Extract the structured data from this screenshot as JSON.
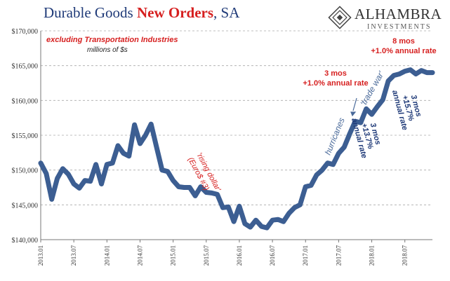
{
  "chart_data": {
    "type": "line",
    "title": {
      "part1": "Durable Goods ",
      "part2": "New Orders",
      "part3": ", SA"
    },
    "subtitle": "excluding Transportation  Industries",
    "units": "millions of $s",
    "ylim": [
      140000,
      170000
    ],
    "yticks": [
      140000,
      145000,
      150000,
      155000,
      160000,
      165000,
      170000
    ],
    "ytick_labels": [
      "$140,000",
      "$145,000",
      "$150,000",
      "$155,000",
      "$160,000",
      "$165,000",
      "$170,000"
    ],
    "xtick_labels": [
      "2013.01",
      "2013.07",
      "2014.01",
      "2014.07",
      "2015.01",
      "2015.07",
      "2016.01",
      "2016.07",
      "2017.01",
      "2017.07",
      "2018.01",
      "2018.07"
    ],
    "grid": true,
    "series_color": "#3c5e92",
    "x": [
      "2013.01",
      "2013.02",
      "2013.03",
      "2013.04",
      "2013.05",
      "2013.06",
      "2013.07",
      "2013.08",
      "2013.09",
      "2013.10",
      "2013.11",
      "2013.12",
      "2014.01",
      "2014.02",
      "2014.03",
      "2014.04",
      "2014.05",
      "2014.06",
      "2014.07",
      "2014.08",
      "2014.09",
      "2014.10",
      "2014.11",
      "2014.12",
      "2015.01",
      "2015.02",
      "2015.03",
      "2015.04",
      "2015.05",
      "2015.06",
      "2015.07",
      "2015.08",
      "2015.09",
      "2015.10",
      "2015.11",
      "2015.12",
      "2016.01",
      "2016.02",
      "2016.03",
      "2016.04",
      "2016.05",
      "2016.06",
      "2016.07",
      "2016.08",
      "2016.09",
      "2016.10",
      "2016.11",
      "2016.12",
      "2017.01",
      "2017.02",
      "2017.03",
      "2017.04",
      "2017.05",
      "2017.06",
      "2017.07",
      "2017.08",
      "2017.09",
      "2017.10",
      "2017.11",
      "2017.12",
      "2018.01",
      "2018.02",
      "2018.03",
      "2018.04",
      "2018.05",
      "2018.06",
      "2018.07",
      "2018.08",
      "2018.09",
      "2018.10",
      "2018.11",
      "2018.12"
    ],
    "values": [
      151000,
      149500,
      145800,
      148800,
      150200,
      149400,
      148000,
      147400,
      148500,
      148400,
      150800,
      148000,
      150800,
      151000,
      153500,
      152400,
      152000,
      156500,
      153800,
      155000,
      156600,
      153300,
      150000,
      149800,
      148500,
      147600,
      147500,
      147500,
      146300,
      147600,
      146800,
      146700,
      146500,
      144600,
      144700,
      142600,
      144800,
      142300,
      141800,
      142800,
      141900,
      141700,
      142800,
      142900,
      142600,
      143800,
      144600,
      145000,
      147600,
      147800,
      149300,
      150000,
      151000,
      150800,
      152400,
      153300,
      155200,
      157000,
      156800,
      158800,
      158000,
      159100,
      160100,
      162800,
      163600,
      163800,
      164200,
      164400,
      163800,
      164300,
      164000,
      164000
    ],
    "annotations": [
      {
        "id": "rising-dollar",
        "lines": [
          "'rising dollar'",
          "(Euro$ #3)"
        ],
        "color": "#d61f1f"
      },
      {
        "id": "hurricanes",
        "lines": [
          "hurricanes"
        ],
        "color": "#4a6a9a"
      },
      {
        "id": "trade-war",
        "lines": [
          "'trade war'"
        ],
        "color": "#4a6a9a"
      },
      {
        "id": "left-red",
        "lines": [
          "3 mos",
          "+1.0% annual rate"
        ],
        "color": "#d61f1f"
      },
      {
        "id": "right-red",
        "lines": [
          "8 mos",
          "+1.0% annual rate"
        ],
        "color": "#d61f1f"
      },
      {
        "id": "left-blue",
        "lines": [
          "3 mos",
          "+13.7%",
          "annual rate"
        ],
        "color": "#1f3a78"
      },
      {
        "id": "right-blue",
        "lines": [
          "3 mos",
          "+15.7%",
          "annual rate"
        ],
        "color": "#1f3a78"
      }
    ]
  },
  "logo": {
    "name": "ALHAMBRA",
    "sub": "INVESTMENTS"
  }
}
